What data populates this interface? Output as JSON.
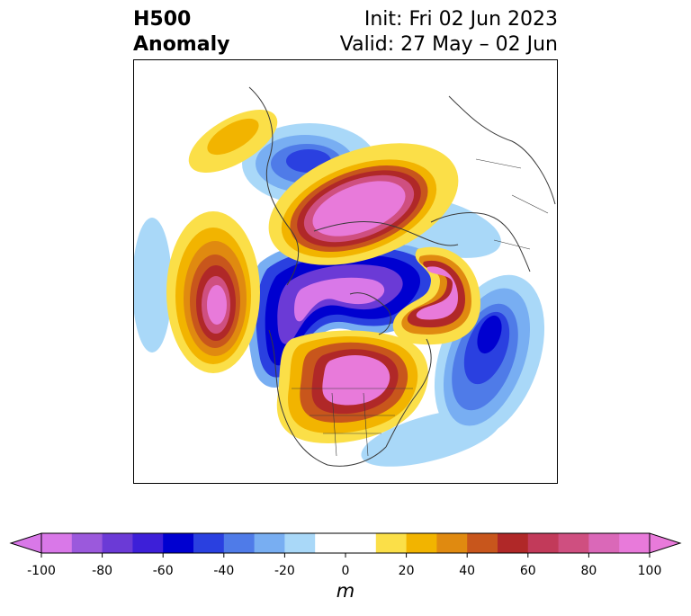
{
  "title": {
    "left_line1": "H500",
    "left_line2": "Anomaly",
    "right_line1": "Init: Fri 02 Jun 2023",
    "right_line2": "Valid: 27 May – 02 Jun"
  },
  "colorbar": {
    "unit": "m",
    "min": -100,
    "max": 100,
    "ticks": [
      "-100",
      "-80",
      "-60",
      "-40",
      "-20",
      "0",
      "20",
      "40",
      "60",
      "80",
      "100"
    ],
    "colors": [
      "#d978e8",
      "#9b59dc",
      "#6b3ad6",
      "#3d1fd8",
      "#0000d0",
      "#2a40e0",
      "#4f7be8",
      "#78aef2",
      "#a9d8f8",
      "#ffffff",
      "#ffffff",
      "#fbdf48",
      "#f2b400",
      "#e08a10",
      "#c8561c",
      "#b02828",
      "#c23a5a",
      "#cf4f80",
      "#da68b8",
      "#e87ada"
    ],
    "extend": "both"
  },
  "colors": {
    "land_outline": "#3a3a3a",
    "neg_light": "#a9d8f8",
    "neg_mid": "#4f7be8",
    "neg_deep": "#0000d0",
    "neg_max": "#9b59dc",
    "pos_light": "#fbdf48",
    "pos_mid": "#e08a10",
    "pos_deep": "#b02828",
    "pos_max": "#e87ada"
  }
}
